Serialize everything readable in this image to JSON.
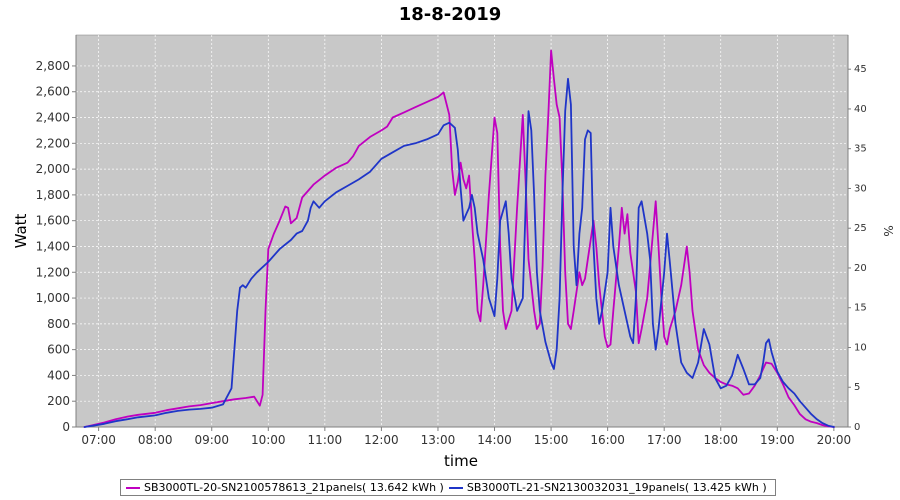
{
  "chart_data": {
    "type": "line",
    "title": "18-8-2019",
    "xlabel": "time",
    "ylabel": "Watt",
    "y2label": "%",
    "xlim": [
      6.6,
      20.25
    ],
    "ylim": [
      0,
      3040
    ],
    "y2lim": [
      0,
      49.3
    ],
    "x_ticks": [
      "07:00",
      "08:00",
      "09:00",
      "10:00",
      "11:00",
      "12:00",
      "13:00",
      "14:00",
      "15:00",
      "16:00",
      "17:00",
      "18:00",
      "19:00",
      "20:00"
    ],
    "y_ticks": [
      "0",
      "200",
      "400",
      "600",
      "800",
      "1,000",
      "1,200",
      "1,400",
      "1,600",
      "1,800",
      "2,000",
      "2,200",
      "2,400",
      "2,600",
      "2,800"
    ],
    "y2_ticks": [
      "0",
      "5",
      "10",
      "15",
      "20",
      "25",
      "30",
      "35",
      "40",
      "45"
    ],
    "grid": true,
    "legend_position": "bottom",
    "series": [
      {
        "name": "SB3000TL-20-SN2100578613_21panels( 13.642 kWh )",
        "color": "#c000c0",
        "points": [
          [
            6.75,
            0
          ],
          [
            6.9,
            15
          ],
          [
            7.1,
            35
          ],
          [
            7.3,
            60
          ],
          [
            7.5,
            80
          ],
          [
            7.7,
            95
          ],
          [
            8.0,
            110
          ],
          [
            8.2,
            130
          ],
          [
            8.4,
            145
          ],
          [
            8.6,
            160
          ],
          [
            8.8,
            170
          ],
          [
            9.0,
            185
          ],
          [
            9.2,
            200
          ],
          [
            9.4,
            215
          ],
          [
            9.6,
            225
          ],
          [
            9.75,
            235
          ],
          [
            9.85,
            165
          ],
          [
            9.9,
            250
          ],
          [
            9.95,
            900
          ],
          [
            10.0,
            1380
          ],
          [
            10.1,
            1500
          ],
          [
            10.2,
            1600
          ],
          [
            10.3,
            1710
          ],
          [
            10.35,
            1700
          ],
          [
            10.4,
            1580
          ],
          [
            10.5,
            1620
          ],
          [
            10.6,
            1780
          ],
          [
            10.8,
            1880
          ],
          [
            11.0,
            1950
          ],
          [
            11.2,
            2010
          ],
          [
            11.4,
            2050
          ],
          [
            11.5,
            2100
          ],
          [
            11.6,
            2180
          ],
          [
            11.8,
            2250
          ],
          [
            12.0,
            2300
          ],
          [
            12.1,
            2330
          ],
          [
            12.2,
            2400
          ],
          [
            12.4,
            2440
          ],
          [
            12.6,
            2480
          ],
          [
            12.8,
            2520
          ],
          [
            13.0,
            2560
          ],
          [
            13.1,
            2595
          ],
          [
            13.2,
            2420
          ],
          [
            13.25,
            2000
          ],
          [
            13.3,
            1800
          ],
          [
            13.35,
            1900
          ],
          [
            13.4,
            2050
          ],
          [
            13.45,
            1920
          ],
          [
            13.5,
            1850
          ],
          [
            13.55,
            1950
          ],
          [
            13.6,
            1600
          ],
          [
            13.65,
            1300
          ],
          [
            13.7,
            900
          ],
          [
            13.75,
            820
          ],
          [
            13.8,
            1100
          ],
          [
            13.9,
            1800
          ],
          [
            14.0,
            2400
          ],
          [
            14.05,
            2280
          ],
          [
            14.1,
            1400
          ],
          [
            14.15,
            900
          ],
          [
            14.2,
            760
          ],
          [
            14.3,
            900
          ],
          [
            14.4,
            1700
          ],
          [
            14.5,
            2420
          ],
          [
            14.55,
            1900
          ],
          [
            14.6,
            1300
          ],
          [
            14.7,
            900
          ],
          [
            14.75,
            760
          ],
          [
            14.8,
            800
          ],
          [
            14.85,
            1250
          ],
          [
            14.9,
            1950
          ],
          [
            14.95,
            2400
          ],
          [
            15.0,
            2920
          ],
          [
            15.05,
            2700
          ],
          [
            15.1,
            2500
          ],
          [
            15.15,
            2400
          ],
          [
            15.2,
            1900
          ],
          [
            15.25,
            1200
          ],
          [
            15.3,
            800
          ],
          [
            15.35,
            760
          ],
          [
            15.4,
            900
          ],
          [
            15.5,
            1200
          ],
          [
            15.55,
            1100
          ],
          [
            15.6,
            1150
          ],
          [
            15.65,
            1300
          ],
          [
            15.75,
            1600
          ],
          [
            15.8,
            1400
          ],
          [
            15.85,
            1100
          ],
          [
            15.9,
            900
          ],
          [
            15.95,
            700
          ],
          [
            16.0,
            620
          ],
          [
            16.05,
            640
          ],
          [
            16.1,
            900
          ],
          [
            16.2,
            1400
          ],
          [
            16.25,
            1700
          ],
          [
            16.3,
            1500
          ],
          [
            16.35,
            1650
          ],
          [
            16.4,
            1350
          ],
          [
            16.5,
            1050
          ],
          [
            16.55,
            650
          ],
          [
            16.6,
            760
          ],
          [
            16.7,
            1000
          ],
          [
            16.8,
            1500
          ],
          [
            16.85,
            1750
          ],
          [
            16.9,
            1400
          ],
          [
            16.95,
            1000
          ],
          [
            17.0,
            700
          ],
          [
            17.05,
            640
          ],
          [
            17.1,
            760
          ],
          [
            17.2,
            900
          ],
          [
            17.3,
            1100
          ],
          [
            17.4,
            1400
          ],
          [
            17.45,
            1200
          ],
          [
            17.5,
            900
          ],
          [
            17.6,
            600
          ],
          [
            17.7,
            480
          ],
          [
            17.8,
            420
          ],
          [
            17.9,
            380
          ],
          [
            18.0,
            350
          ],
          [
            18.1,
            330
          ],
          [
            18.2,
            320
          ],
          [
            18.3,
            300
          ],
          [
            18.4,
            250
          ],
          [
            18.5,
            260
          ],
          [
            18.6,
            320
          ],
          [
            18.7,
            400
          ],
          [
            18.8,
            500
          ],
          [
            18.9,
            490
          ],
          [
            19.0,
            420
          ],
          [
            19.1,
            330
          ],
          [
            19.2,
            230
          ],
          [
            19.3,
            170
          ],
          [
            19.4,
            100
          ],
          [
            19.5,
            60
          ],
          [
            19.6,
            40
          ],
          [
            19.7,
            30
          ],
          [
            19.8,
            15
          ],
          [
            19.9,
            5
          ],
          [
            20.0,
            0
          ]
        ]
      },
      {
        "name": "SB3000TL-21-SN2130032031_19panels( 13.425 kWh )",
        "color": "#1f35c8",
        "points": [
          [
            6.75,
            0
          ],
          [
            6.9,
            10
          ],
          [
            7.1,
            25
          ],
          [
            7.3,
            45
          ],
          [
            7.5,
            60
          ],
          [
            7.7,
            75
          ],
          [
            8.0,
            90
          ],
          [
            8.2,
            110
          ],
          [
            8.4,
            125
          ],
          [
            8.6,
            135
          ],
          [
            8.8,
            140
          ],
          [
            9.0,
            150
          ],
          [
            9.2,
            175
          ],
          [
            9.35,
            300
          ],
          [
            9.45,
            900
          ],
          [
            9.5,
            1080
          ],
          [
            9.55,
            1100
          ],
          [
            9.6,
            1080
          ],
          [
            9.7,
            1150
          ],
          [
            9.8,
            1200
          ],
          [
            10.0,
            1280
          ],
          [
            10.2,
            1380
          ],
          [
            10.4,
            1450
          ],
          [
            10.5,
            1500
          ],
          [
            10.6,
            1520
          ],
          [
            10.7,
            1600
          ],
          [
            10.75,
            1700
          ],
          [
            10.8,
            1750
          ],
          [
            10.9,
            1700
          ],
          [
            11.0,
            1750
          ],
          [
            11.2,
            1820
          ],
          [
            11.4,
            1870
          ],
          [
            11.6,
            1920
          ],
          [
            11.8,
            1980
          ],
          [
            12.0,
            2080
          ],
          [
            12.2,
            2130
          ],
          [
            12.4,
            2180
          ],
          [
            12.6,
            2200
          ],
          [
            12.8,
            2230
          ],
          [
            13.0,
            2270
          ],
          [
            13.1,
            2340
          ],
          [
            13.2,
            2360
          ],
          [
            13.3,
            2320
          ],
          [
            13.35,
            2150
          ],
          [
            13.4,
            1850
          ],
          [
            13.45,
            1600
          ],
          [
            13.5,
            1650
          ],
          [
            13.55,
            1700
          ],
          [
            13.6,
            1800
          ],
          [
            13.65,
            1700
          ],
          [
            13.7,
            1500
          ],
          [
            13.8,
            1300
          ],
          [
            13.9,
            1000
          ],
          [
            14.0,
            860
          ],
          [
            14.05,
            1150
          ],
          [
            14.1,
            1600
          ],
          [
            14.2,
            1750
          ],
          [
            14.25,
            1500
          ],
          [
            14.3,
            1150
          ],
          [
            14.4,
            900
          ],
          [
            14.5,
            1000
          ],
          [
            14.6,
            2450
          ],
          [
            14.65,
            2300
          ],
          [
            14.7,
            1800
          ],
          [
            14.75,
            1200
          ],
          [
            14.8,
            900
          ],
          [
            14.9,
            660
          ],
          [
            15.0,
            500
          ],
          [
            15.05,
            450
          ],
          [
            15.1,
            600
          ],
          [
            15.15,
            1000
          ],
          [
            15.2,
            1800
          ],
          [
            15.25,
            2450
          ],
          [
            15.3,
            2700
          ],
          [
            15.35,
            2500
          ],
          [
            15.4,
            1400
          ],
          [
            15.45,
            1100
          ],
          [
            15.5,
            1500
          ],
          [
            15.55,
            1700
          ],
          [
            15.6,
            2230
          ],
          [
            15.65,
            2300
          ],
          [
            15.7,
            2280
          ],
          [
            15.75,
            1400
          ],
          [
            15.8,
            1000
          ],
          [
            15.85,
            800
          ],
          [
            15.9,
            900
          ],
          [
            16.0,
            1200
          ],
          [
            16.05,
            1700
          ],
          [
            16.1,
            1400
          ],
          [
            16.2,
            1100
          ],
          [
            16.3,
            900
          ],
          [
            16.4,
            700
          ],
          [
            16.45,
            650
          ],
          [
            16.5,
            1000
          ],
          [
            16.55,
            1700
          ],
          [
            16.6,
            1750
          ],
          [
            16.7,
            1500
          ],
          [
            16.75,
            1300
          ],
          [
            16.8,
            800
          ],
          [
            16.85,
            600
          ],
          [
            16.9,
            760
          ],
          [
            17.0,
            1200
          ],
          [
            17.05,
            1500
          ],
          [
            17.1,
            1280
          ],
          [
            17.2,
            800
          ],
          [
            17.3,
            500
          ],
          [
            17.4,
            420
          ],
          [
            17.5,
            380
          ],
          [
            17.6,
            500
          ],
          [
            17.7,
            760
          ],
          [
            17.8,
            640
          ],
          [
            17.9,
            380
          ],
          [
            18.0,
            300
          ],
          [
            18.1,
            320
          ],
          [
            18.2,
            400
          ],
          [
            18.3,
            560
          ],
          [
            18.4,
            450
          ],
          [
            18.5,
            330
          ],
          [
            18.6,
            330
          ],
          [
            18.7,
            380
          ],
          [
            18.75,
            500
          ],
          [
            18.8,
            650
          ],
          [
            18.85,
            680
          ],
          [
            18.9,
            580
          ],
          [
            19.0,
            430
          ],
          [
            19.1,
            350
          ],
          [
            19.2,
            300
          ],
          [
            19.3,
            260
          ],
          [
            19.4,
            200
          ],
          [
            19.5,
            150
          ],
          [
            19.6,
            100
          ],
          [
            19.7,
            60
          ],
          [
            19.8,
            30
          ],
          [
            19.9,
            10
          ],
          [
            20.0,
            0
          ]
        ]
      }
    ]
  }
}
